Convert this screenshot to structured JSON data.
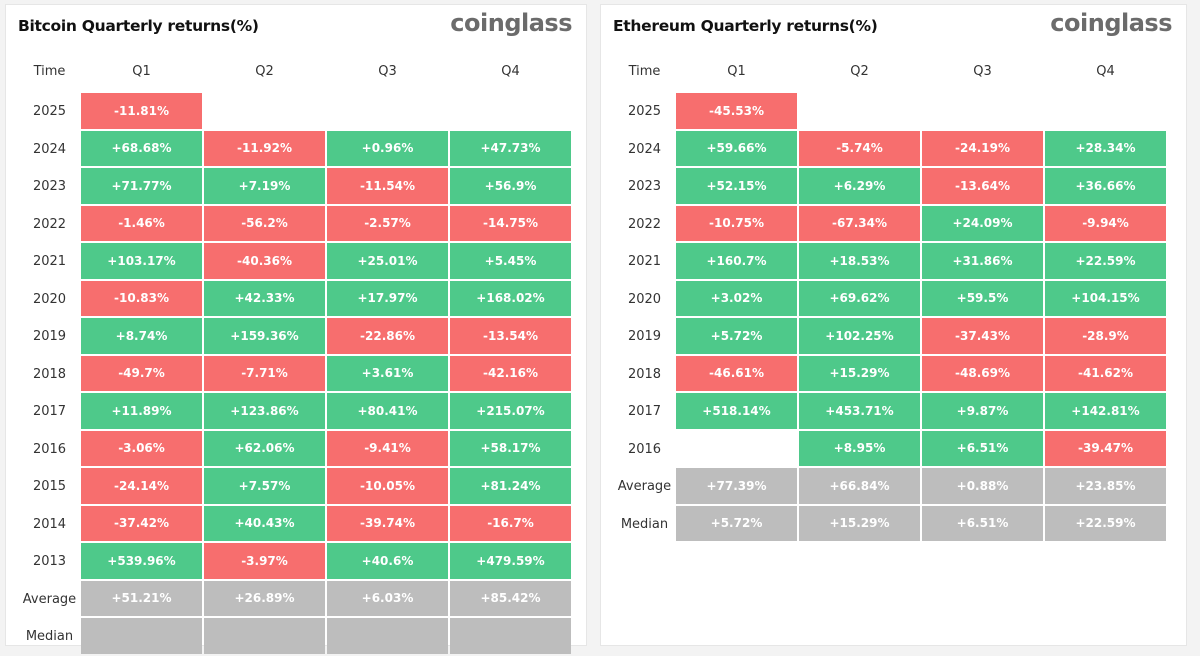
{
  "colors": {
    "positive": "#4ec98a",
    "negative": "#f76e6e",
    "summary": "#bdbdbd"
  },
  "panels": [
    {
      "id": "btc",
      "title": "Bitcoin Quarterly returns(%)",
      "logo": "coinglass",
      "headers": [
        "Time",
        "Q1",
        "Q2",
        "Q3",
        "Q4"
      ],
      "rows": [
        {
          "label": "2025",
          "values": [
            "-11.81%",
            "",
            "",
            ""
          ]
        },
        {
          "label": "2024",
          "values": [
            "+68.68%",
            "-11.92%",
            "+0.96%",
            "+47.73%"
          ]
        },
        {
          "label": "2023",
          "values": [
            "+71.77%",
            "+7.19%",
            "-11.54%",
            "+56.9%"
          ]
        },
        {
          "label": "2022",
          "values": [
            "-1.46%",
            "-56.2%",
            "-2.57%",
            "-14.75%"
          ]
        },
        {
          "label": "2021",
          "values": [
            "+103.17%",
            "-40.36%",
            "+25.01%",
            "+5.45%"
          ]
        },
        {
          "label": "2020",
          "values": [
            "-10.83%",
            "+42.33%",
            "+17.97%",
            "+168.02%"
          ]
        },
        {
          "label": "2019",
          "values": [
            "+8.74%",
            "+159.36%",
            "-22.86%",
            "-13.54%"
          ]
        },
        {
          "label": "2018",
          "values": [
            "-49.7%",
            "-7.71%",
            "+3.61%",
            "-42.16%"
          ]
        },
        {
          "label": "2017",
          "values": [
            "+11.89%",
            "+123.86%",
            "+80.41%",
            "+215.07%"
          ]
        },
        {
          "label": "2016",
          "values": [
            "-3.06%",
            "+62.06%",
            "-9.41%",
            "+58.17%"
          ]
        },
        {
          "label": "2015",
          "values": [
            "-24.14%",
            "+7.57%",
            "-10.05%",
            "+81.24%"
          ]
        },
        {
          "label": "2014",
          "values": [
            "-37.42%",
            "+40.43%",
            "-39.74%",
            "-16.7%"
          ]
        },
        {
          "label": "2013",
          "values": [
            "+539.96%",
            "-3.97%",
            "+40.6%",
            "+479.59%"
          ]
        },
        {
          "label": "Average",
          "summary": true,
          "values": [
            "+51.21%",
            "+26.89%",
            "+6.03%",
            "+85.42%"
          ]
        },
        {
          "label": "Median",
          "summary": true,
          "values": [
            "",
            "",
            "",
            ""
          ]
        }
      ]
    },
    {
      "id": "eth",
      "title": "Ethereum Quarterly returns(%)",
      "logo": "coinglass",
      "headers": [
        "Time",
        "Q1",
        "Q2",
        "Q3",
        "Q4"
      ],
      "rows": [
        {
          "label": "2025",
          "values": [
            "-45.53%",
            "",
            "",
            ""
          ]
        },
        {
          "label": "2024",
          "values": [
            "+59.66%",
            "-5.74%",
            "-24.19%",
            "+28.34%"
          ]
        },
        {
          "label": "2023",
          "values": [
            "+52.15%",
            "+6.29%",
            "-13.64%",
            "+36.66%"
          ]
        },
        {
          "label": "2022",
          "values": [
            "-10.75%",
            "-67.34%",
            "+24.09%",
            "-9.94%"
          ]
        },
        {
          "label": "2021",
          "values": [
            "+160.7%",
            "+18.53%",
            "+31.86%",
            "+22.59%"
          ]
        },
        {
          "label": "2020",
          "values": [
            "+3.02%",
            "+69.62%",
            "+59.5%",
            "+104.15%"
          ]
        },
        {
          "label": "2019",
          "values": [
            "+5.72%",
            "+102.25%",
            "-37.43%",
            "-28.9%"
          ]
        },
        {
          "label": "2018",
          "values": [
            "-46.61%",
            "+15.29%",
            "-48.69%",
            "-41.62%"
          ]
        },
        {
          "label": "2017",
          "values": [
            "+518.14%",
            "+453.71%",
            "+9.87%",
            "+142.81%"
          ]
        },
        {
          "label": "2016",
          "values": [
            "",
            "+8.95%",
            "+6.51%",
            "-39.47%"
          ]
        },
        {
          "label": "Average",
          "summary": true,
          "values": [
            "+77.39%",
            "+66.84%",
            "+0.88%",
            "+23.85%"
          ]
        },
        {
          "label": "Median",
          "summary": true,
          "values": [
            "+5.72%",
            "+15.29%",
            "+6.51%",
            "+22.59%"
          ]
        }
      ]
    }
  ]
}
